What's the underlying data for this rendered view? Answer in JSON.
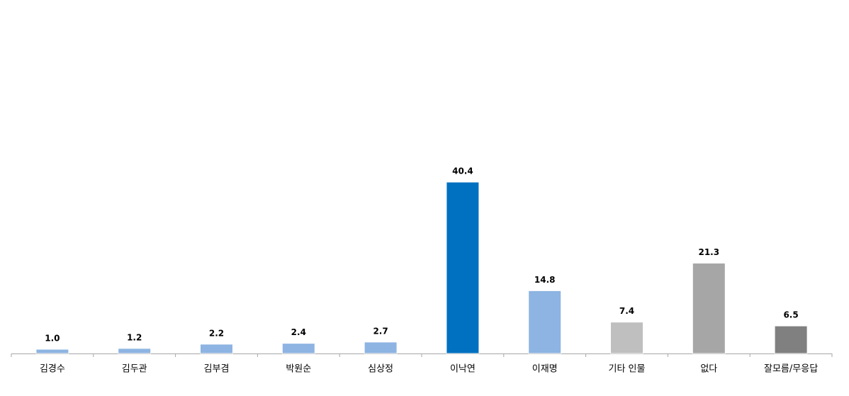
{
  "chart_data": {
    "type": "bar",
    "categories": [
      "김경수",
      "김두관",
      "김부겸",
      "박원순",
      "심상정",
      "이낙연",
      "이재명",
      "기타 인물",
      "없다",
      "잘모름/무응답"
    ],
    "values": [
      1.0,
      1.2,
      2.2,
      2.4,
      2.7,
      40.4,
      14.8,
      7.4,
      21.3,
      6.5
    ],
    "value_labels": [
      "1.0",
      "1.2",
      "2.2",
      "2.4",
      "2.7",
      "40.4",
      "14.8",
      "7.4",
      "21.3",
      "6.5"
    ],
    "colors": [
      "#8db4e2",
      "#8db4e2",
      "#8db4e2",
      "#8db4e2",
      "#8db4e2",
      "#0070c0",
      "#8db4e2",
      "#bfbfbf",
      "#a6a6a6",
      "#808080"
    ]
  }
}
